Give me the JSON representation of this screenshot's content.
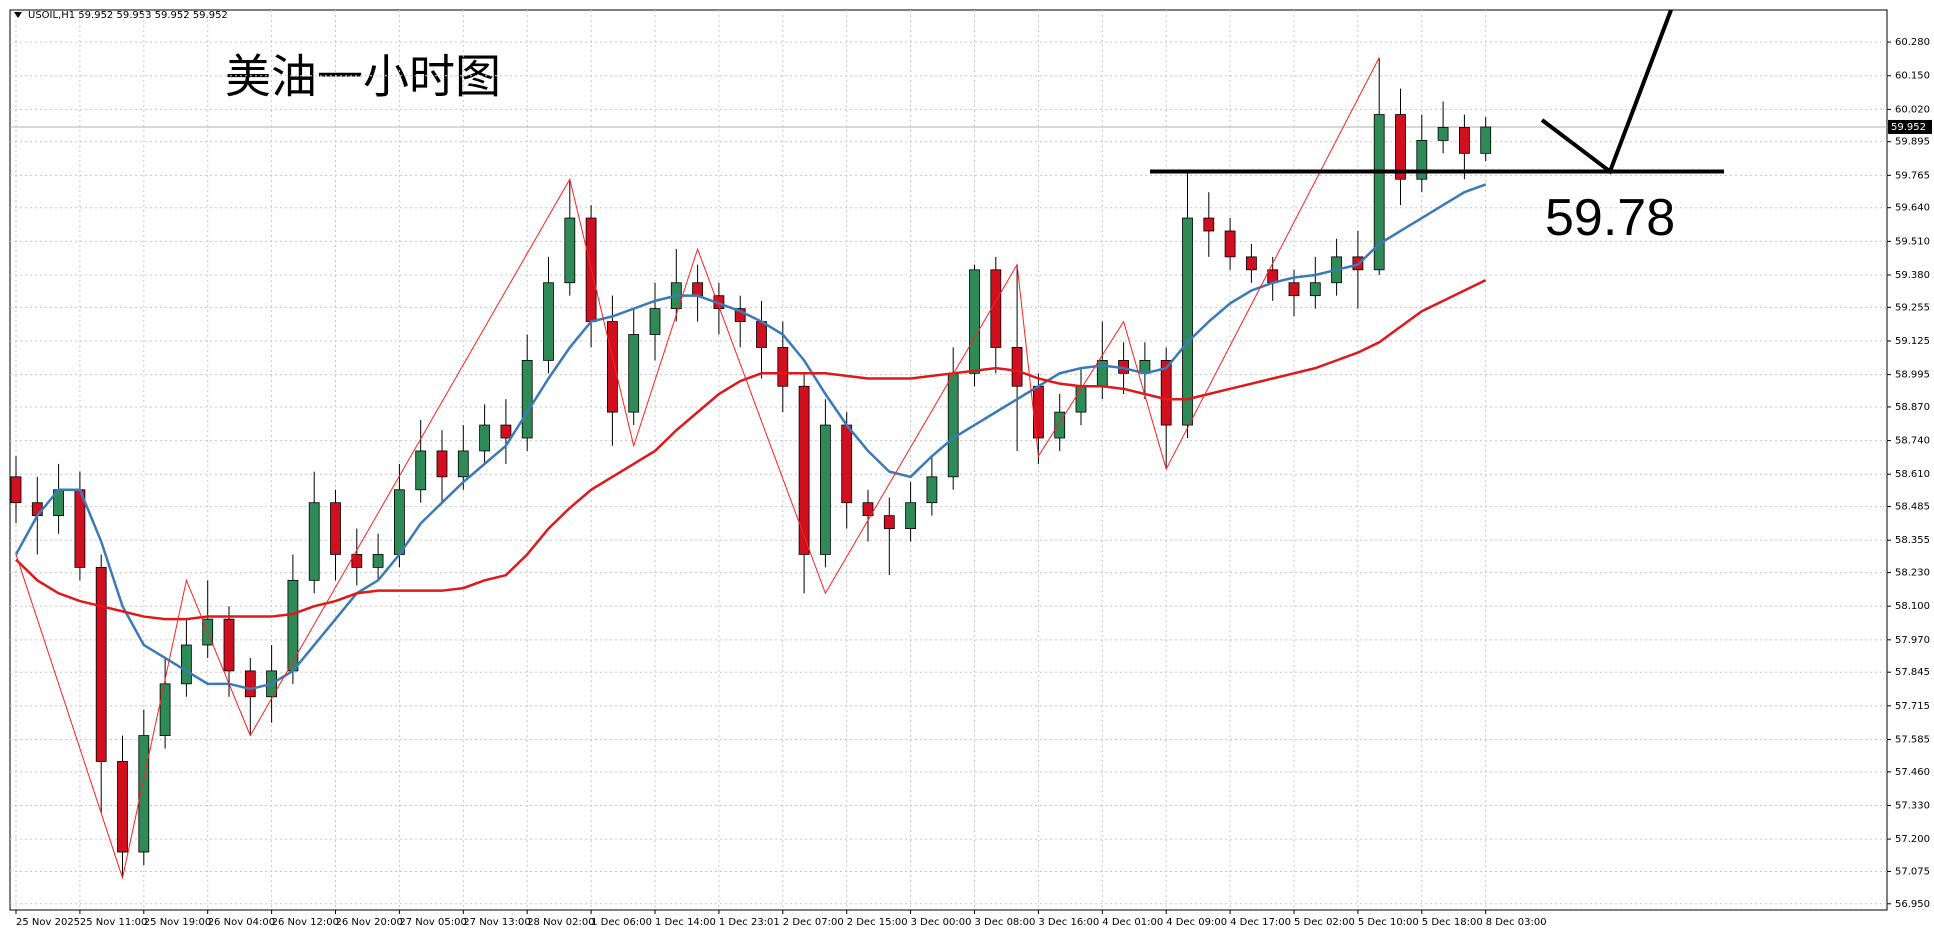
{
  "chart_data": {
    "type": "candlestick",
    "header": "USOIL,H1 59.952 59.953 59.952 59.952",
    "title": "美油一小时图",
    "categories": [
      "25 Nov 2025",
      null,
      null,
      "25 Nov 11:00",
      null,
      null,
      "25 Nov 19:00",
      null,
      null,
      "26 Nov 04:00",
      null,
      null,
      "26 Nov 12:00",
      null,
      null,
      "26 Nov 20:00",
      null,
      null,
      "27 Nov 05:00",
      null,
      null,
      "27 Nov 13:00",
      null,
      null,
      "28 Nov 02:00",
      null,
      null,
      "1 Dec 06:00",
      null,
      null,
      "1 Dec 14:00",
      null,
      null,
      "1 Dec 23:01",
      null,
      null,
      "2 Dec 07:00",
      null,
      null,
      "2 Dec 15:00",
      null,
      null,
      "3 Dec 00:00",
      null,
      null,
      "3 Dec 08:00",
      null,
      null,
      "3 Dec 16:00",
      null,
      null,
      "4 Dec 01:00",
      null,
      null,
      "4 Dec 09:00",
      null,
      null,
      "4 Dec 17:00",
      null,
      null,
      "5 Dec 02:00",
      null,
      null,
      "5 Dec 10:00",
      null,
      null,
      "5 Dec 18:00",
      null,
      null,
      "8 Dec 03:00"
    ],
    "open": [
      58.6,
      58.5,
      58.45,
      58.55,
      58.25,
      57.5,
      57.15,
      57.6,
      57.8,
      57.95,
      58.05,
      57.85,
      57.75,
      57.85,
      58.2,
      58.5,
      58.3,
      58.25,
      58.3,
      58.55,
      58.7,
      58.6,
      58.7,
      58.8,
      58.75,
      59.05,
      59.35,
      59.6,
      59.2,
      58.85,
      59.15,
      59.25,
      59.35,
      59.3,
      59.25,
      59.2,
      59.1,
      58.95,
      58.3,
      58.8,
      58.5,
      58.45,
      58.4,
      58.5,
      58.6,
      59.0,
      59.4,
      59.1,
      58.95,
      58.75,
      58.85,
      58.95,
      59.05,
      59.0,
      59.05,
      58.8,
      59.6,
      59.55,
      59.45,
      59.4,
      59.35,
      59.3,
      59.35,
      59.45,
      59.4,
      60.0,
      59.75,
      59.9,
      59.95,
      59.85
    ],
    "high": [
      58.68,
      58.6,
      58.65,
      58.62,
      58.3,
      57.6,
      57.7,
      57.9,
      58.05,
      58.2,
      58.1,
      57.9,
      57.95,
      58.3,
      58.62,
      58.55,
      58.4,
      58.38,
      58.65,
      58.82,
      58.78,
      58.8,
      58.88,
      58.9,
      59.15,
      59.45,
      59.75,
      59.65,
      59.3,
      59.25,
      59.35,
      59.48,
      59.42,
      59.35,
      59.3,
      59.28,
      59.2,
      59.0,
      58.9,
      58.85,
      58.55,
      58.52,
      58.58,
      58.68,
      59.1,
      59.42,
      59.45,
      59.42,
      59.0,
      58.92,
      59.02,
      59.2,
      59.12,
      59.12,
      59.1,
      59.78,
      59.7,
      59.6,
      59.5,
      59.45,
      59.4,
      59.45,
      59.52,
      59.55,
      60.22,
      60.1,
      60.0,
      60.05,
      60.0,
      59.99
    ],
    "low": [
      58.42,
      58.3,
      58.38,
      58.2,
      57.3,
      57.05,
      57.1,
      57.55,
      57.75,
      57.9,
      57.75,
      57.6,
      57.65,
      57.8,
      58.15,
      58.2,
      58.18,
      58.2,
      58.25,
      58.5,
      58.5,
      58.55,
      58.65,
      58.65,
      58.7,
      59.0,
      59.3,
      59.1,
      58.72,
      58.8,
      59.05,
      59.2,
      59.2,
      59.15,
      59.1,
      58.98,
      58.85,
      58.15,
      58.25,
      58.4,
      58.35,
      58.22,
      58.35,
      58.45,
      58.55,
      58.95,
      59.0,
      58.7,
      58.65,
      58.7,
      58.8,
      58.9,
      58.92,
      58.9,
      58.63,
      58.75,
      59.45,
      59.4,
      59.35,
      59.28,
      59.22,
      59.25,
      59.3,
      59.25,
      59.38,
      59.65,
      59.7,
      59.85,
      59.75,
      59.82
    ],
    "close": [
      58.5,
      58.45,
      58.55,
      58.25,
      57.5,
      57.15,
      57.6,
      57.8,
      57.95,
      58.05,
      57.85,
      57.75,
      57.85,
      58.2,
      58.5,
      58.3,
      58.25,
      58.3,
      58.55,
      58.7,
      58.6,
      58.7,
      58.8,
      58.75,
      59.05,
      59.35,
      59.6,
      59.2,
      58.85,
      59.15,
      59.25,
      59.35,
      59.3,
      59.25,
      59.2,
      59.1,
      58.95,
      58.3,
      58.8,
      58.5,
      58.45,
      58.4,
      58.5,
      58.6,
      59.0,
      59.4,
      59.1,
      58.95,
      58.75,
      58.85,
      58.95,
      59.05,
      59.0,
      59.05,
      58.8,
      59.6,
      59.55,
      59.45,
      59.4,
      59.35,
      59.3,
      59.35,
      59.45,
      59.4,
      60.0,
      59.75,
      59.9,
      59.95,
      59.85,
      59.952
    ],
    "up_color": "#2e8b57",
    "down_color": "#d0101e",
    "moving_averages": [
      {
        "color": "#3a7ab8",
        "values": [
          58.3,
          58.45,
          58.55,
          58.55,
          58.35,
          58.1,
          57.95,
          57.9,
          57.85,
          57.8,
          57.8,
          57.78,
          57.8,
          57.85,
          57.95,
          58.05,
          58.15,
          58.2,
          58.3,
          58.42,
          58.5,
          58.58,
          58.65,
          58.72,
          58.85,
          58.98,
          59.1,
          59.2,
          59.22,
          59.25,
          59.28,
          59.3,
          59.3,
          59.27,
          59.24,
          59.2,
          59.15,
          59.05,
          58.92,
          58.8,
          58.7,
          58.62,
          58.6,
          58.68,
          58.75,
          58.8,
          58.85,
          58.9,
          58.95,
          59.0,
          59.02,
          59.03,
          59.02,
          59.0,
          59.02,
          59.12,
          59.2,
          59.27,
          59.32,
          59.35,
          59.37,
          59.38,
          59.4,
          59.42,
          59.5,
          59.55,
          59.6,
          59.65,
          59.7,
          59.73
        ]
      },
      {
        "color": "#e0181c",
        "values": [
          58.28,
          58.2,
          58.15,
          58.12,
          58.1,
          58.08,
          58.06,
          58.05,
          58.05,
          58.06,
          58.06,
          58.06,
          58.06,
          58.07,
          58.1,
          58.12,
          58.15,
          58.16,
          58.16,
          58.16,
          58.16,
          58.17,
          58.2,
          58.22,
          58.3,
          58.4,
          58.48,
          58.55,
          58.6,
          58.65,
          58.7,
          58.78,
          58.85,
          58.92,
          58.97,
          59.0,
          59.0,
          59.0,
          59.0,
          58.99,
          58.98,
          58.98,
          58.98,
          58.99,
          59.0,
          59.01,
          59.02,
          59.01,
          58.98,
          58.96,
          58.95,
          58.95,
          58.94,
          58.92,
          58.9,
          58.9,
          58.92,
          58.94,
          58.96,
          58.98,
          59.0,
          59.02,
          59.05,
          59.08,
          59.12,
          59.18,
          59.24,
          59.28,
          59.32,
          59.36
        ]
      }
    ],
    "zigzag": {
      "color": "#ff2020",
      "x": [
        0,
        5,
        8,
        11,
        26,
        29,
        32,
        38,
        47,
        48,
        52,
        54,
        64
      ],
      "values": [
        58.3,
        57.05,
        58.2,
        57.6,
        59.75,
        58.72,
        59.48,
        58.15,
        59.42,
        58.68,
        59.2,
        58.63,
        60.22
      ]
    },
    "level": 59.78,
    "last_price": 59.952,
    "ylim": [
      56.926,
      60.404
    ],
    "yticks": [
      {
        "value": 60.28,
        "label": "60.280"
      },
      {
        "value": 60.15,
        "label": "60.150"
      },
      {
        "value": 60.02,
        "label": "60.020"
      },
      59.895,
      59.765,
      {
        "value": 59.64,
        "label": "59.640"
      },
      {
        "value": 59.51,
        "label": "59.510"
      },
      {
        "value": 59.38,
        "label": "59.380"
      },
      59.255,
      59.125,
      58.995,
      {
        "value": 58.87,
        "label": "58.870"
      },
      {
        "value": 58.74,
        "label": "58.740"
      },
      {
        "value": 58.61,
        "label": "58.610"
      },
      58.485,
      58.355,
      {
        "value": 58.23,
        "label": "58.230"
      },
      {
        "value": 58.1,
        "label": "58.100"
      },
      {
        "value": 57.97,
        "label": "57.970"
      },
      57.845,
      57.715,
      57.585,
      {
        "value": 57.46,
        "label": "57.460"
      },
      {
        "value": 57.33,
        "label": "57.330"
      },
      {
        "value": 57.2,
        "label": "57.200"
      },
      57.075,
      {
        "value": 56.95,
        "label": "56.950"
      }
    ],
    "grid": true
  }
}
